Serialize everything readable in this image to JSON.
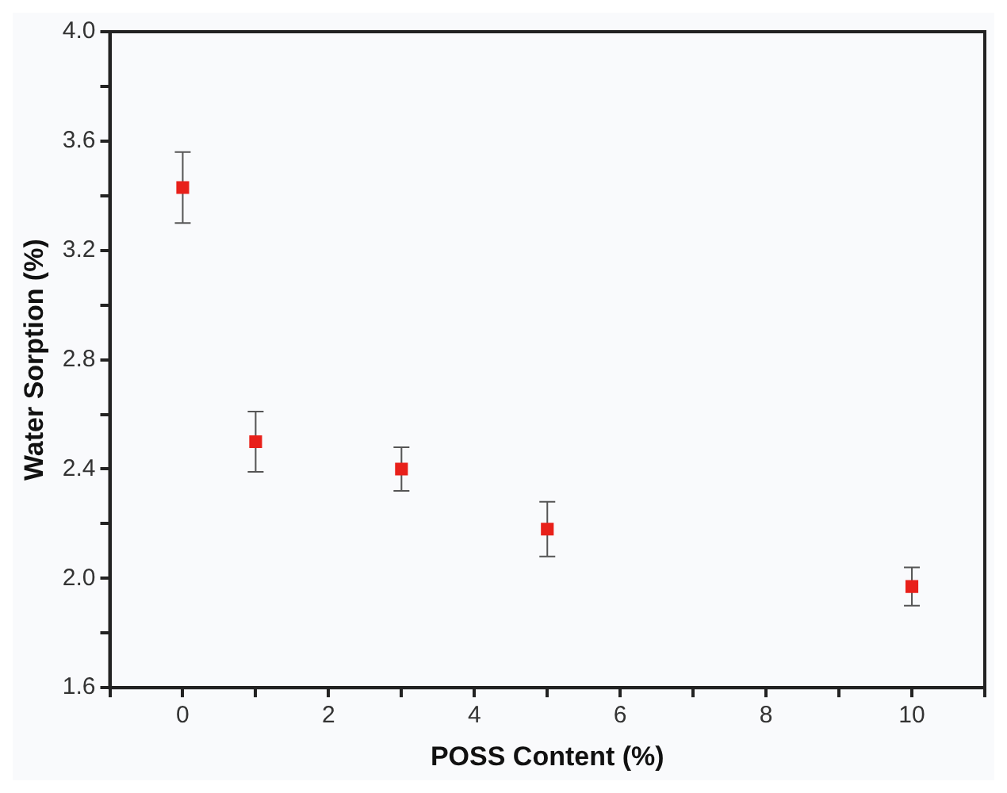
{
  "chart_data": {
    "type": "scatter",
    "xlabel": "POSS Content (%)",
    "ylabel": "Water Sorption (%)",
    "x": [
      0,
      1,
      3,
      5,
      10
    ],
    "series": [
      {
        "color": "#e8201a",
        "values": [
          3.43,
          2.5,
          2.4,
          2.18,
          1.97
        ],
        "errors": [
          0.13,
          0.11,
          0.08,
          0.1,
          0.07
        ]
      }
    ],
    "xlim": [
      -1,
      11
    ],
    "xticks": [
      {
        "value": -1,
        "label": null
      },
      0,
      {
        "value": 1,
        "label": null
      },
      2,
      {
        "value": 3,
        "label": null
      },
      4,
      {
        "value": 5,
        "label": null
      },
      6,
      {
        "value": 7,
        "label": null
      },
      8,
      {
        "value": 9,
        "label": null
      },
      10,
      {
        "value": 11,
        "label": null
      }
    ],
    "ylim": [
      1.6,
      4.0
    ],
    "yticks": [
      {
        "value": 1.6,
        "label": "1.6"
      },
      {
        "value": 1.8,
        "label": null
      },
      {
        "value": 2.0,
        "label": "2.0"
      },
      {
        "value": 2.2,
        "label": null
      },
      {
        "value": 2.4,
        "label": "2.4"
      },
      {
        "value": 2.6,
        "label": null
      },
      {
        "value": 2.8,
        "label": "2.8"
      },
      {
        "value": 3.0,
        "label": null
      },
      {
        "value": 3.2,
        "label": "3.2"
      },
      {
        "value": 3.4,
        "label": null
      },
      {
        "value": 3.6,
        "label": "3.6"
      },
      {
        "value": 3.8,
        "label": null
      },
      {
        "value": 4.0,
        "label": "4.0"
      }
    ],
    "grid": false,
    "legend": false,
    "marker": "square"
  }
}
